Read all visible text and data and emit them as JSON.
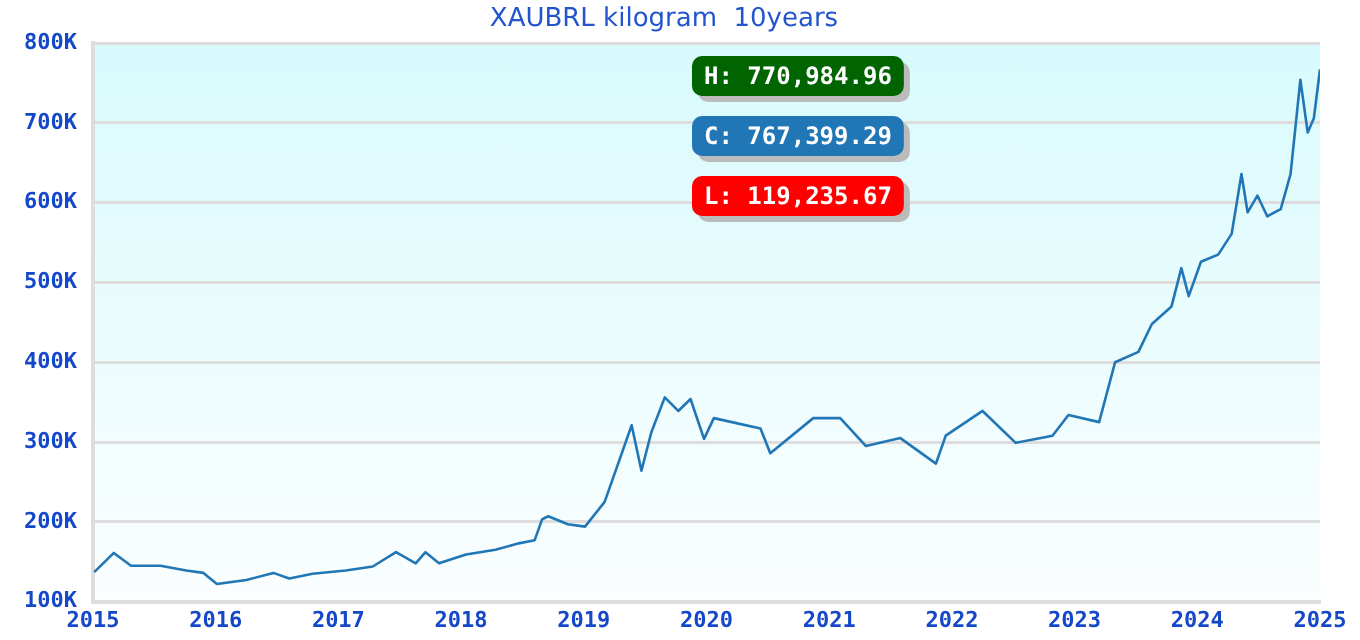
{
  "chart_data": {
    "type": "line",
    "title": "XAUBRL kilogram  10years",
    "x": [
      2015.01,
      2015.17,
      2015.31,
      2015.55,
      2015.76,
      2015.9,
      2016.01,
      2016.25,
      2016.47,
      2016.6,
      2016.79,
      2017.06,
      2017.28,
      2017.47,
      2017.63,
      2017.71,
      2017.82,
      2018.04,
      2018.28,
      2018.47,
      2018.6,
      2018.66,
      2018.71,
      2018.87,
      2019.01,
      2019.17,
      2019.28,
      2019.39,
      2019.47,
      2019.55,
      2019.66,
      2019.77,
      2019.87,
      2019.98,
      2020.06,
      2020.44,
      2020.52,
      2020.87,
      2021.09,
      2021.3,
      2021.58,
      2021.87,
      2021.95,
      2022.25,
      2022.52,
      2022.82,
      2022.95,
      2023.2,
      2023.33,
      2023.52,
      2023.63,
      2023.79,
      2023.87,
      2023.93,
      2024.03,
      2024.17,
      2024.28,
      2024.36,
      2024.41,
      2024.49,
      2024.57,
      2024.68,
      2024.76,
      2024.84,
      2024.9,
      2024.95,
      2025.0
    ],
    "series": [
      {
        "color": "#2176b5",
        "values": [
          137000,
          161000,
          145000,
          145000,
          139000,
          136000,
          122000,
          127000,
          136000,
          129000,
          135000,
          139000,
          144000,
          162000,
          148000,
          162000,
          148000,
          159000,
          165000,
          173000,
          177000,
          203000,
          207000,
          197000,
          194000,
          225000,
          273000,
          321000,
          264000,
          312000,
          356000,
          339000,
          354000,
          304000,
          330000,
          317000,
          286000,
          330000,
          330000,
          295000,
          305000,
          273000,
          308000,
          339000,
          299000,
          308000,
          334000,
          325000,
          400000,
          413000,
          448000,
          470000,
          518000,
          483000,
          526000,
          535000,
          561000,
          636000,
          588000,
          609000,
          583000,
          592000,
          636000,
          754000,
          688000,
          706000,
          767000
        ]
      }
    ],
    "xlim": [
      2015,
      2025
    ],
    "xticks": [
      2015,
      2016,
      2017,
      2018,
      2019,
      2020,
      2021,
      2022,
      2023,
      2024,
      2025
    ],
    "ylim": [
      100000,
      800000
    ],
    "yticks": [
      {
        "value": 100000,
        "label": "100K"
      },
      {
        "value": 200000,
        "label": "200K"
      },
      {
        "value": 300000,
        "label": "300K"
      },
      {
        "value": 400000,
        "label": "400K"
      },
      {
        "value": 500000,
        "label": "500K"
      },
      {
        "value": 600000,
        "label": "600K"
      },
      {
        "value": 700000,
        "label": "700K"
      },
      {
        "value": 800000,
        "label": "800K"
      }
    ],
    "grid": "y",
    "marker": "none",
    "line_style": "solid",
    "annotations": [
      "H: 770,984.96",
      "C: 767,399.29",
      "L: 119,235.67"
    ]
  }
}
